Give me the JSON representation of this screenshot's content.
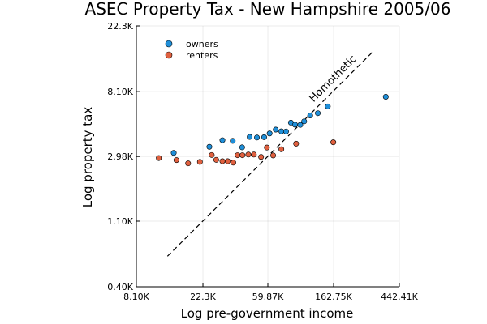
{
  "chart_data": {
    "type": "scatter",
    "title": "ASEC Property Tax - New Hampshire 2005/06",
    "xlabel": "Log pre-government income",
    "ylabel": "Log property tax",
    "x_scale": "log",
    "y_scale": "log",
    "xlim": [
      8100,
      442410
    ],
    "ylim": [
      400,
      22300
    ],
    "x_ticks": [
      {
        "value": 8100,
        "label": "8.10K"
      },
      {
        "value": 22300,
        "label": "22.3K"
      },
      {
        "value": 59870,
        "label": "59.87K"
      },
      {
        "value": 162750,
        "label": "162.75K"
      },
      {
        "value": 442410,
        "label": "442.41K"
      }
    ],
    "y_ticks": [
      {
        "value": 400,
        "label": "0.40K"
      },
      {
        "value": 1100,
        "label": "1.10K"
      },
      {
        "value": 2980,
        "label": "2.98K"
      },
      {
        "value": 8100,
        "label": "8.10K"
      },
      {
        "value": 22300,
        "label": "22.3K"
      }
    ],
    "grid": true,
    "legend_position": "top-left",
    "series": [
      {
        "name": "owners",
        "color": "#1f8fd9",
        "points": [
          [
            14300,
            3150
          ],
          [
            24600,
            3460
          ],
          [
            30000,
            3830
          ],
          [
            35100,
            3790
          ],
          [
            40500,
            3430
          ],
          [
            45400,
            4030
          ],
          [
            50700,
            3990
          ],
          [
            56600,
            4010
          ],
          [
            61500,
            4250
          ],
          [
            67500,
            4510
          ],
          [
            73500,
            4390
          ],
          [
            79000,
            4380
          ],
          [
            85000,
            5020
          ],
          [
            90500,
            4870
          ],
          [
            98000,
            4850
          ],
          [
            104000,
            5120
          ],
          [
            114000,
            5610
          ],
          [
            128000,
            5810
          ],
          [
            149000,
            6450
          ],
          [
            360000,
            7480
          ]
        ]
      },
      {
        "name": "renters",
        "color": "#e0603f",
        "points": [
          [
            11400,
            2910
          ],
          [
            14900,
            2820
          ],
          [
            17800,
            2680
          ],
          [
            21300,
            2740
          ],
          [
            25500,
            3050
          ],
          [
            27300,
            2830
          ],
          [
            30000,
            2770
          ],
          [
            32500,
            2770
          ],
          [
            35400,
            2710
          ],
          [
            37800,
            3040
          ],
          [
            40700,
            3040
          ],
          [
            44500,
            3070
          ],
          [
            48400,
            3070
          ],
          [
            54000,
            2960
          ],
          [
            59000,
            3420
          ],
          [
            64900,
            3030
          ],
          [
            73500,
            3330
          ],
          [
            92000,
            3630
          ],
          [
            162000,
            3710
          ]
        ]
      }
    ],
    "reference_line": {
      "label": "Homothetic",
      "from": [
        13000,
        640
      ],
      "to": [
        300000,
        15200
      ]
    }
  }
}
